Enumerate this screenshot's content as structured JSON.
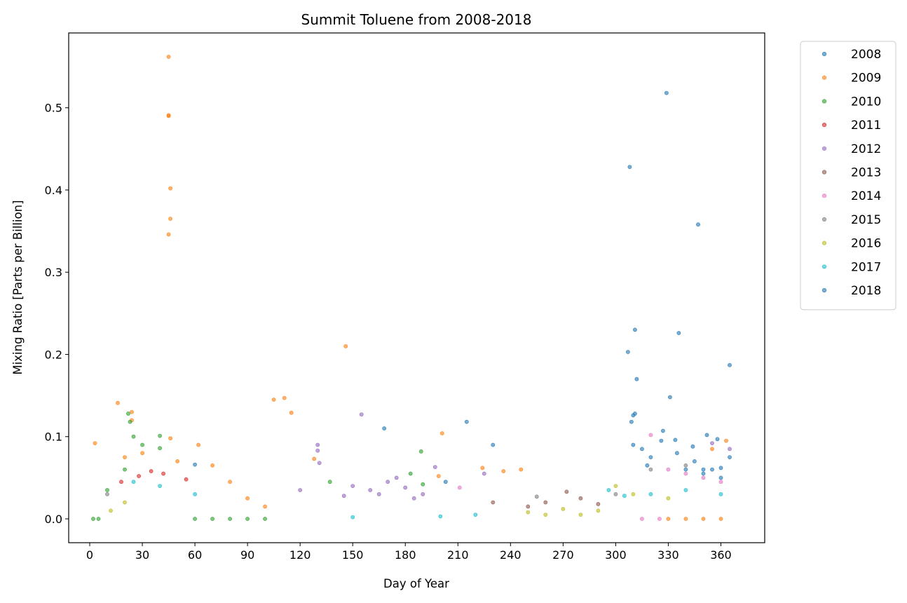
{
  "chart_data": {
    "type": "scatter",
    "title": "Summit Toluene from 2008-2018",
    "xlabel": "Day of Year",
    "ylabel": "Mixing Ratio [Parts per Billion]",
    "xlim": [
      -12,
      385
    ],
    "ylim": [
      -0.029,
      0.591
    ],
    "xticks": [
      0,
      30,
      60,
      90,
      120,
      150,
      180,
      210,
      240,
      270,
      300,
      330,
      360
    ],
    "xtick_labels": [
      "0",
      "30",
      "60",
      "90",
      "120",
      "150",
      "180",
      "210",
      "240",
      "270",
      "300",
      "330",
      "360"
    ],
    "yticks": [
      0.0,
      0.1,
      0.2,
      0.3,
      0.4,
      0.5
    ],
    "ytick_labels": [
      "0.0",
      "0.1",
      "0.2",
      "0.3",
      "0.4",
      "0.5"
    ],
    "grid": false,
    "legend_position": "outside-right-top",
    "marker_alpha": 0.6,
    "series": [
      {
        "name": "2008",
        "color": "#1f77b4",
        "points": [
          [
            307,
            0.203
          ],
          [
            308,
            0.428
          ],
          [
            310,
            0.126
          ],
          [
            311,
            0.23
          ],
          [
            312,
            0.17
          ],
          [
            329,
            0.518
          ],
          [
            331,
            0.148
          ],
          [
            336,
            0.226
          ],
          [
            347,
            0.358
          ],
          [
            365,
            0.187
          ],
          [
            309,
            0.118
          ],
          [
            311,
            0.128
          ],
          [
            315,
            0.085
          ],
          [
            320,
            0.075
          ],
          [
            326,
            0.095
          ],
          [
            335,
            0.08
          ],
          [
            340,
            0.06
          ],
          [
            345,
            0.07
          ],
          [
            350,
            0.055
          ],
          [
            355,
            0.06
          ],
          [
            360,
            0.05
          ],
          [
            310,
            0.09
          ],
          [
            318,
            0.065
          ],
          [
            327,
            0.107
          ],
          [
            334,
            0.096
          ],
          [
            344,
            0.088
          ],
          [
            352,
            0.102
          ],
          [
            358,
            0.097
          ]
        ]
      },
      {
        "name": "2009",
        "color": "#ff7f0e",
        "points": [
          [
            45,
            0.562
          ],
          [
            45,
            0.49
          ],
          [
            45,
            0.491
          ],
          [
            46,
            0.402
          ],
          [
            46,
            0.365
          ],
          [
            45,
            0.346
          ],
          [
            146,
            0.21
          ],
          [
            105,
            0.145
          ],
          [
            111,
            0.147
          ],
          [
            115,
            0.129
          ],
          [
            16,
            0.141
          ],
          [
            24,
            0.13
          ],
          [
            24,
            0.12
          ],
          [
            3,
            0.092
          ],
          [
            62,
            0.09
          ],
          [
            201,
            0.104
          ],
          [
            224,
            0.062
          ],
          [
            236,
            0.058
          ],
          [
            246,
            0.06
          ],
          [
            199,
            0.052
          ],
          [
            128,
            0.073
          ],
          [
            46,
            0.098
          ],
          [
            20,
            0.075
          ],
          [
            30,
            0.08
          ],
          [
            50,
            0.07
          ],
          [
            70,
            0.065
          ],
          [
            80,
            0.045
          ],
          [
            90,
            0.025
          ],
          [
            100,
            0.015
          ],
          [
            330,
            0.0
          ],
          [
            340,
            0.0
          ],
          [
            350,
            0.0
          ],
          [
            360,
            0.0
          ],
          [
            363,
            0.095
          ],
          [
            355,
            0.085
          ]
        ]
      },
      {
        "name": "2010",
        "color": "#2ca02c",
        "points": [
          [
            22,
            0.128
          ],
          [
            23,
            0.118
          ],
          [
            40,
            0.101
          ],
          [
            40,
            0.086
          ],
          [
            25,
            0.1
          ],
          [
            30,
            0.09
          ],
          [
            189,
            0.082
          ],
          [
            183,
            0.055
          ],
          [
            190,
            0.042
          ],
          [
            137,
            0.045
          ],
          [
            10,
            0.035
          ],
          [
            20,
            0.06
          ],
          [
            60,
            0.0
          ],
          [
            70,
            0.0
          ],
          [
            80,
            0.0
          ],
          [
            90,
            0.0
          ],
          [
            100,
            0.0
          ],
          [
            5,
            0.0
          ],
          [
            2,
            0.0
          ]
        ]
      },
      {
        "name": "2011",
        "color": "#d62728",
        "points": [
          [
            35,
            0.058
          ],
          [
            42,
            0.055
          ],
          [
            55,
            0.048
          ],
          [
            28,
            0.052
          ],
          [
            18,
            0.045
          ]
        ]
      },
      {
        "name": "2012",
        "color": "#9467bd",
        "points": [
          [
            155,
            0.127
          ],
          [
            130,
            0.09
          ],
          [
            130,
            0.083
          ],
          [
            131,
            0.068
          ],
          [
            197,
            0.063
          ],
          [
            225,
            0.055
          ],
          [
            355,
            0.092
          ],
          [
            365,
            0.085
          ],
          [
            150,
            0.04
          ],
          [
            160,
            0.035
          ],
          [
            170,
            0.045
          ],
          [
            180,
            0.038
          ],
          [
            190,
            0.03
          ],
          [
            175,
            0.05
          ],
          [
            165,
            0.03
          ],
          [
            145,
            0.028
          ],
          [
            120,
            0.035
          ],
          [
            185,
            0.025
          ]
        ]
      },
      {
        "name": "2013",
        "color": "#8c564b",
        "points": [
          [
            272,
            0.033
          ],
          [
            260,
            0.02
          ],
          [
            280,
            0.025
          ],
          [
            290,
            0.018
          ],
          [
            250,
            0.015
          ],
          [
            230,
            0.02
          ]
        ]
      },
      {
        "name": "2014",
        "color": "#e377c2",
        "points": [
          [
            320,
            0.102
          ],
          [
            211,
            0.038
          ],
          [
            330,
            0.06
          ],
          [
            340,
            0.055
          ],
          [
            350,
            0.05
          ],
          [
            360,
            0.045
          ],
          [
            315,
            0.0
          ],
          [
            325,
            0.0
          ]
        ]
      },
      {
        "name": "2015",
        "color": "#7f7f7f",
        "points": [
          [
            255,
            0.027
          ],
          [
            300,
            0.03
          ],
          [
            320,
            0.06
          ],
          [
            340,
            0.065
          ],
          [
            10,
            0.03
          ]
        ]
      },
      {
        "name": "2016",
        "color": "#bcbd22",
        "points": [
          [
            12,
            0.01
          ],
          [
            20,
            0.02
          ],
          [
            300,
            0.04
          ],
          [
            310,
            0.03
          ],
          [
            330,
            0.025
          ],
          [
            250,
            0.008
          ],
          [
            270,
            0.012
          ],
          [
            290,
            0.01
          ],
          [
            280,
            0.005
          ],
          [
            260,
            0.005
          ]
        ]
      },
      {
        "name": "2017",
        "color": "#17becf",
        "points": [
          [
            296,
            0.035
          ],
          [
            305,
            0.028
          ],
          [
            320,
            0.03
          ],
          [
            340,
            0.035
          ],
          [
            360,
            0.03
          ],
          [
            25,
            0.045
          ],
          [
            40,
            0.04
          ],
          [
            60,
            0.03
          ],
          [
            150,
            0.002
          ],
          [
            200,
            0.003
          ],
          [
            220,
            0.005
          ]
        ]
      },
      {
        "name": "2018",
        "color": "#1f77b4",
        "points": [
          [
            168,
            0.11
          ],
          [
            215,
            0.118
          ],
          [
            230,
            0.09
          ],
          [
            203,
            0.045
          ],
          [
            60,
            0.066
          ],
          [
            350,
            0.06
          ],
          [
            360,
            0.062
          ],
          [
            365,
            0.075
          ]
        ]
      }
    ]
  }
}
